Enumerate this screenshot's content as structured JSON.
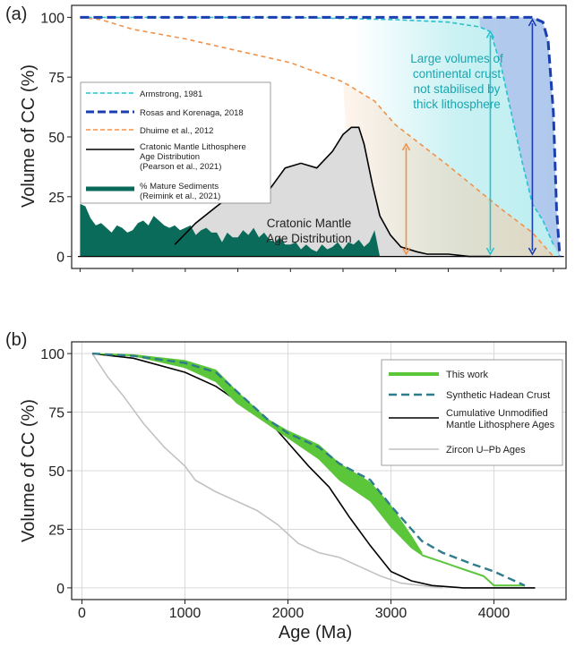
{
  "chart_data": [
    {
      "panel_label": "(a)",
      "type": "line",
      "xlim": [
        -80,
        4620
      ],
      "ylim": [
        -5,
        105
      ],
      "yticks": [
        "0",
        "25",
        "50",
        "75",
        "100"
      ],
      "ylabel": "Volume of CC (%)",
      "grid": false,
      "legend_position": "left",
      "legend": [
        {
          "label": "Armstrong, 1981",
          "color": "#26c2cf",
          "style": "dashed"
        },
        {
          "label": "Rosas and Korenaga, 2018",
          "color": "#1b3fb0",
          "style": "dashed-thick"
        },
        {
          "label": "Dhuime et al., 2012",
          "color": "#f0924a",
          "style": "dashed"
        },
        {
          "label": "Cratonic Mantle Lithosphere Age Distribution (Pearson et al., 2021)",
          "color": "#000000",
          "style": "solid"
        },
        {
          "label": "% Mature Sediments (Reimink et al., 2021)",
          "color": "#0b6b5a",
          "style": "fill"
        }
      ],
      "annotations": {
        "shaded_note": "Large volumes of continental crust not stabilised by thick lithosphere",
        "craton_label": "Cratonic Mantle Age Distribution"
      },
      "series": [
        {
          "name": "Armstrong, 1981",
          "color": "#26c2cf",
          "x": [
            0,
            1000,
            2000,
            3000,
            3500,
            3800,
            3900,
            4000,
            4100,
            4200,
            4300,
            4400,
            4500
          ],
          "y": [
            100,
            100,
            100,
            99,
            98,
            96,
            94,
            80,
            60,
            40,
            22,
            15,
            5
          ]
        },
        {
          "name": "Rosas and Korenaga, 2018",
          "color": "#1b3fb0",
          "x": [
            0,
            1000,
            2000,
            3000,
            4000,
            4300,
            4400,
            4450,
            4500,
            4530,
            4560
          ],
          "y": [
            100,
            100,
            100,
            100,
            100,
            100,
            98,
            90,
            60,
            20,
            0
          ]
        },
        {
          "name": "Dhuime et al., 2012",
          "color": "#f0924a",
          "x": [
            0,
            200,
            500,
            1000,
            1500,
            2000,
            2500,
            2800,
            3000,
            3500,
            4000,
            4300,
            4500
          ],
          "y": [
            100,
            99,
            95,
            91,
            86,
            81,
            73,
            65,
            55,
            38,
            20,
            10,
            0
          ]
        },
        {
          "name": "Cratonic Mantle Lithosphere Age Distribution",
          "color": "#000000",
          "x": [
            900,
            1100,
            1300,
            1450,
            1550,
            1650,
            1800,
            1950,
            2100,
            2250,
            2400,
            2500,
            2580,
            2650,
            2700,
            2780,
            2850,
            2950,
            3050,
            3200,
            3300,
            3500,
            3700,
            3900
          ],
          "y": [
            5,
            14,
            21,
            26,
            27,
            25,
            28,
            37,
            39,
            37,
            44,
            51,
            54,
            54,
            47,
            30,
            17,
            9,
            4,
            2,
            1,
            1,
            0,
            0
          ]
        },
        {
          "name": "% Mature Sediments",
          "color": "#0b6b5a",
          "x": [
            0,
            50,
            100,
            150,
            200,
            250,
            300,
            350,
            400,
            450,
            500,
            550,
            600,
            650,
            700,
            750,
            800,
            850,
            900,
            950,
            1000,
            1050,
            1100,
            1150,
            1200,
            1250,
            1300,
            1350,
            1400,
            1450,
            1500,
            1550,
            1600,
            1650,
            1700,
            1750,
            1800,
            1850,
            1900,
            1950,
            2000,
            2050,
            2100,
            2150,
            2200,
            2250,
            2300,
            2350,
            2400,
            2450,
            2500,
            2550,
            2600,
            2650,
            2700,
            2750,
            2800,
            2850
          ],
          "y": [
            22,
            21,
            16,
            13,
            14,
            12,
            10,
            13,
            12,
            10,
            11,
            14,
            15,
            13,
            17,
            15,
            13,
            12,
            13,
            11,
            12,
            13,
            9,
            11,
            12,
            10,
            10,
            6,
            10,
            8,
            8,
            11,
            9,
            12,
            8,
            10,
            7,
            6,
            8,
            5,
            5,
            6,
            3,
            5,
            3,
            2,
            5,
            3,
            4,
            6,
            3,
            6,
            5,
            7,
            4,
            6,
            11,
            0
          ]
        }
      ],
      "arrows": [
        {
          "x": 3100,
          "from": 1,
          "to": 47,
          "color": "#f0924a"
        },
        {
          "x": 3900,
          "from": 1,
          "to": 94,
          "color": "#26c2cf"
        },
        {
          "x": 4300,
          "from": 1,
          "to": 99,
          "color": "#1b3fb0"
        }
      ]
    },
    {
      "panel_label": "(b)",
      "type": "line",
      "xlim": [
        -100,
        4700
      ],
      "ylim": [
        -5,
        105
      ],
      "xticks": [
        "0",
        "1000",
        "2000",
        "3000",
        "4000"
      ],
      "yticks": [
        "0",
        "25",
        "50",
        "75",
        "100"
      ],
      "xlabel": "Age (Ma)",
      "ylabel": "Volume of CC (%)",
      "grid": true,
      "legend_position": "top-right",
      "legend": [
        {
          "label": "This work",
          "color": "#5cc63a",
          "style": "solid-thick"
        },
        {
          "label": "Synthetic Hadean Crust",
          "color": "#2e7c8c",
          "style": "dashed"
        },
        {
          "label": "Cumulative Unmodified Mantle Lithosphere Ages",
          "color": "#000000",
          "style": "solid"
        },
        {
          "label": "Zircon U–Pb Ages",
          "color": "#c2c2c2",
          "style": "solid"
        }
      ],
      "series": [
        {
          "name": "This work (upper bound)",
          "color": "#5cc63a",
          "x": [
            100,
            500,
            1000,
            1300,
            1500,
            1800,
            2000,
            2300,
            2500,
            2800,
            3000,
            3200,
            3300
          ],
          "y": [
            100,
            99.5,
            97,
            93,
            84,
            72,
            67,
            61,
            53,
            45,
            35,
            22,
            15
          ]
        },
        {
          "name": "This work (lower bound)",
          "color": "#5cc63a",
          "x": [
            100,
            500,
            1000,
            1300,
            1500,
            1800,
            2000,
            2300,
            2500,
            2800,
            3000,
            3200,
            3300
          ],
          "y": [
            100,
            99,
            94,
            88,
            79,
            70,
            64,
            55,
            46,
            37,
            26,
            17,
            14
          ]
        },
        {
          "name": "This work (tail)",
          "color": "#5cc63a",
          "x": [
            3300,
            3500,
            3700,
            3900,
            4000,
            4100,
            4200,
            4300
          ],
          "y": [
            14,
            11,
            8,
            5,
            1,
            1,
            1,
            1
          ]
        },
        {
          "name": "Synthetic Hadean Crust",
          "color": "#2e7c8c",
          "x": [
            100,
            500,
            1000,
            1300,
            1500,
            1800,
            2000,
            2300,
            2500,
            2800,
            3000,
            3200,
            3300,
            3500,
            3800,
            4000,
            4200,
            4300
          ],
          "y": [
            100,
            99,
            96,
            92,
            84,
            72,
            66,
            60,
            53,
            46,
            35,
            25,
            20,
            15,
            10,
            7,
            3,
            1
          ]
        },
        {
          "name": "Cumulative Unmodified Mantle Lithosphere Ages",
          "color": "#000000",
          "x": [
            100,
            500,
            1000,
            1300,
            1500,
            1800,
            2000,
            2200,
            2400,
            2600,
            2800,
            3000,
            3200,
            3400,
            3700,
            4000,
            4400
          ],
          "y": [
            100,
            98,
            92,
            86,
            80,
            72,
            62,
            52,
            43,
            30,
            18,
            7,
            3,
            1,
            0,
            0,
            0
          ]
        },
        {
          "name": "Zircon U–Pb Ages",
          "color": "#c2c2c2",
          "x": [
            100,
            250,
            400,
            600,
            800,
            1000,
            1100,
            1300,
            1500,
            1700,
            1900,
            2100,
            2300,
            2500,
            2700,
            2900,
            3100,
            3300,
            3500
          ],
          "y": [
            100,
            90,
            82,
            70,
            60,
            52,
            46,
            41,
            37,
            33,
            27,
            19,
            15,
            13,
            9,
            5,
            2,
            1,
            0
          ]
        }
      ]
    }
  ]
}
